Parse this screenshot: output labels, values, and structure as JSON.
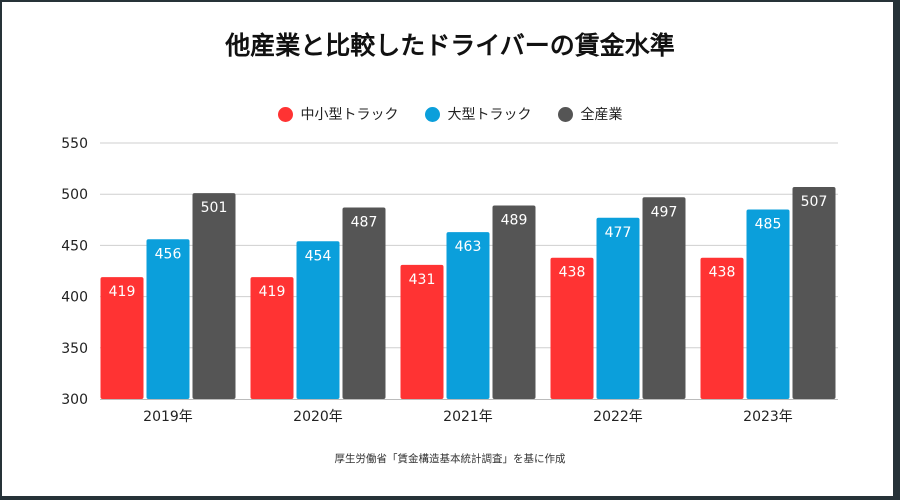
{
  "chart_data": {
    "type": "bar",
    "title": "他産業と比較したドライバーの賃金水準",
    "categories": [
      "2019年",
      "2020年",
      "2021年",
      "2022年",
      "2023年"
    ],
    "series": [
      {
        "name": "中小型トラック",
        "color": "#ff3333",
        "values": [
          419,
          419,
          431,
          438,
          438
        ]
      },
      {
        "name": "大型トラック",
        "color": "#0b9fdb",
        "values": [
          456,
          454,
          463,
          477,
          485
        ]
      },
      {
        "name": "全産業",
        "color": "#555555",
        "values": [
          501,
          487,
          489,
          497,
          507
        ]
      }
    ],
    "ylim": [
      300,
      550
    ],
    "yticks": [
      300,
      350,
      400,
      450,
      500,
      550
    ],
    "grid": true,
    "legend_position": "top",
    "data_labels": true,
    "source": "厚生労働省「賃金構造基本統計調査」を基に作成"
  }
}
